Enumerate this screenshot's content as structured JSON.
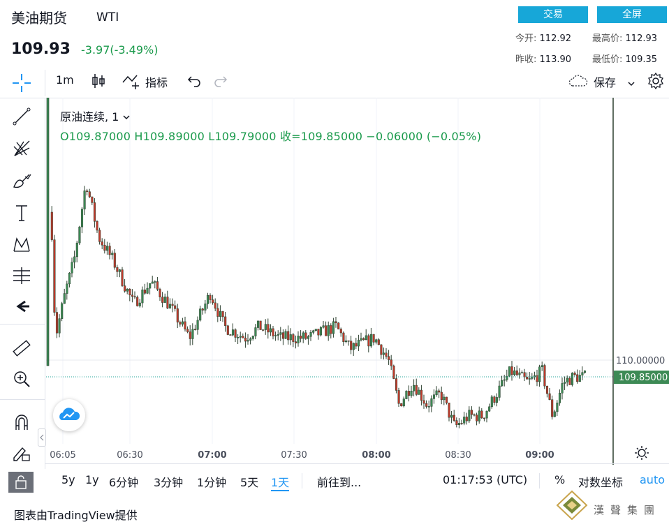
{
  "header": {
    "title": "美油期货",
    "symbol": "WTI",
    "price": "109.93",
    "change": "-3.97(-3.49%)",
    "trade_button": "交易",
    "fullscreen_button": "全屏",
    "stats": {
      "open_label": "今开:",
      "open": "112.92",
      "high_label": "最高价:",
      "high": "112.93",
      "prev_close_label": "昨收:",
      "prev_close": "113.90",
      "low_label": "最低价:",
      "low": "109.35"
    }
  },
  "toolbar": {
    "interval": "1m",
    "indicators_label": "指标",
    "save_label": "保存"
  },
  "legend": {
    "series": "原油连续, 1",
    "ohlc": "O109.87000   H109.89000   L109.79000   收=109.85000   −0.06000 (−0.05%)"
  },
  "chart_data": {
    "type": "candlestick",
    "x_ticks": [
      "06:05",
      "06:30",
      "07:00",
      "07:30",
      "08:00",
      "08:30",
      "09:00"
    ],
    "y_tick": "110.00000",
    "last_price_label": "109.85000",
    "last_price": 109.85,
    "colors": {
      "up": "#26a69a",
      "down": "#ef5350",
      "frame": "#2b3f2e"
    }
  },
  "bottom_bar": {
    "ranges": [
      "5y",
      "1y",
      "6分钟",
      "3分钟",
      "1分钟",
      "5天",
      "1天"
    ],
    "active_range": "1天",
    "goto_label": "前往到...",
    "clock": "01:17:53 (UTC)",
    "percent_label": "%",
    "log_label": "对数坐标",
    "auto_label": "auto"
  },
  "credit": "图表由TradingView提供",
  "watermark": "漢聲集團"
}
